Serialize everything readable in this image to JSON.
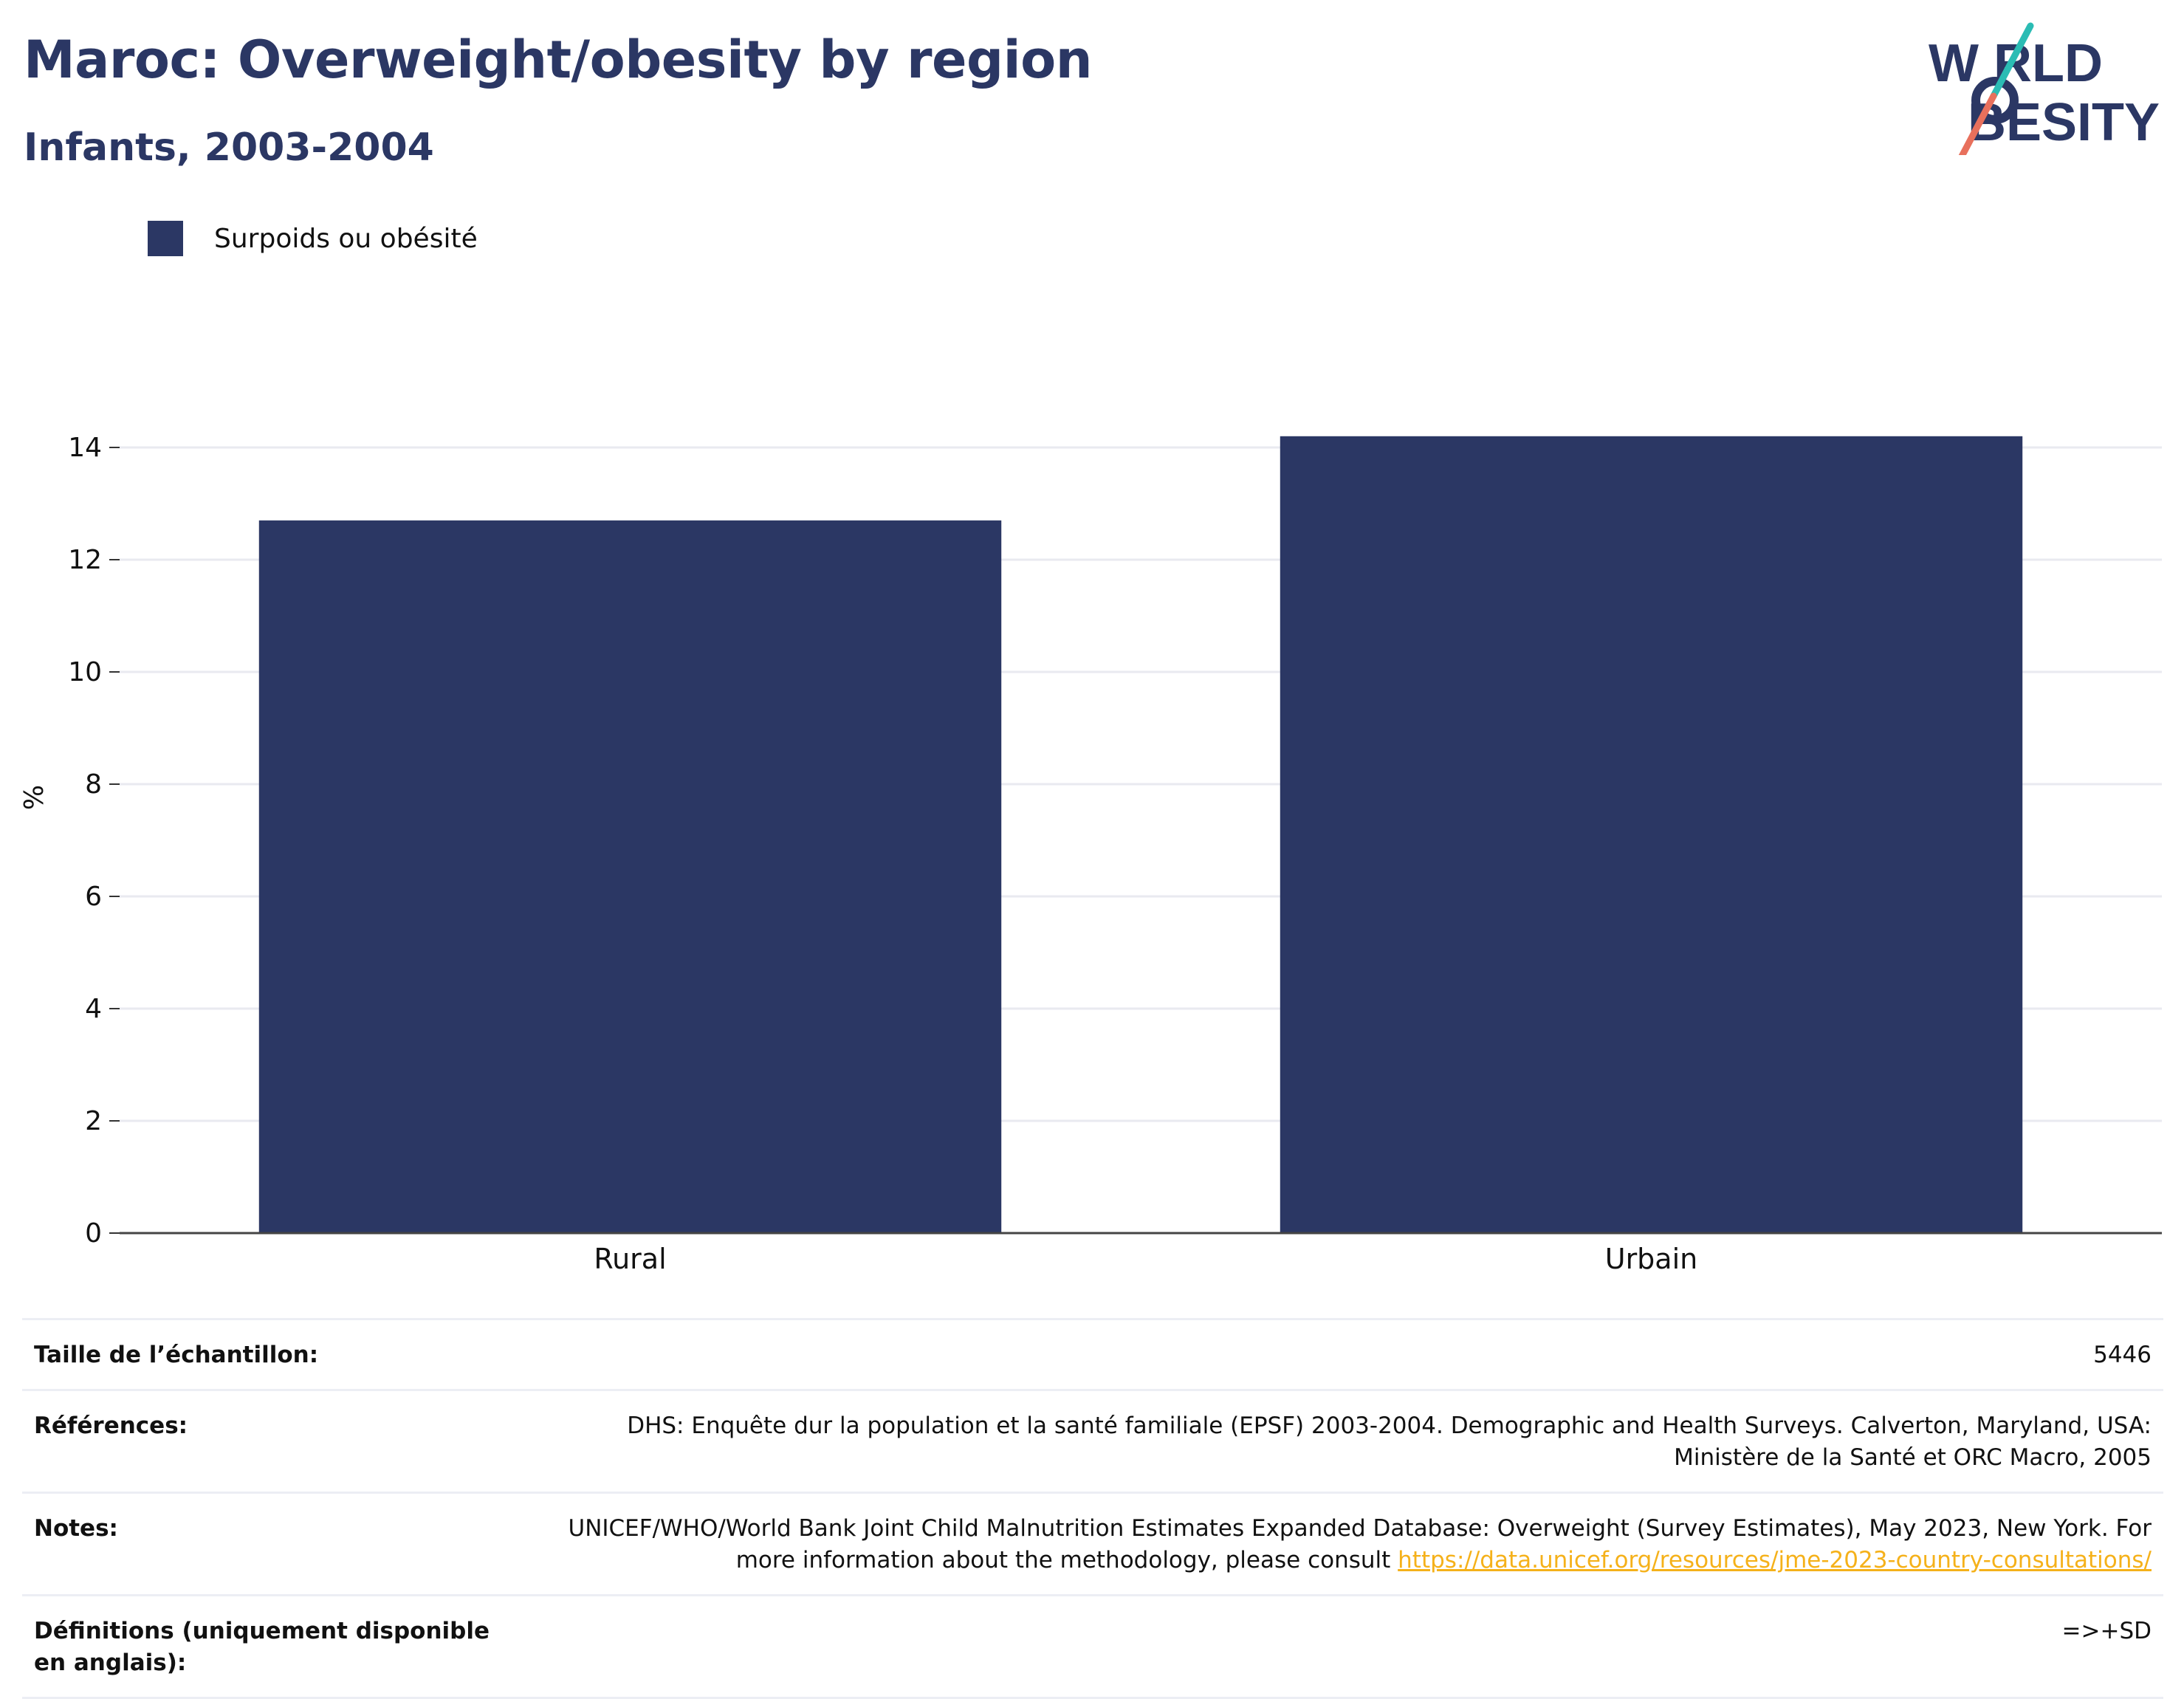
{
  "header": {
    "title": "Maroc: Overweight/obesity by region",
    "subtitle": "Infants, 2003-2004"
  },
  "logo": {
    "line1": "W RLD",
    "line2": "BESITY",
    "colors": {
      "text": "#2b3764",
      "slash_top": "#2bbcb4",
      "slash_bottom": "#e8705c"
    }
  },
  "legend": {
    "label": "Surpoids ou obésité",
    "color": "#2b3764"
  },
  "chart_data": {
    "type": "bar",
    "categories": [
      "Rural",
      "Urbain"
    ],
    "series": [
      {
        "name": "Surpoids ou obésité",
        "values": [
          12.7,
          14.2
        ],
        "color": "#2b3764"
      }
    ],
    "ylabel": "%",
    "xlabel": "",
    "ylim": [
      0,
      15
    ],
    "yticks": [
      0,
      2,
      4,
      6,
      8,
      10,
      12,
      14
    ],
    "grid": true
  },
  "table": {
    "rows": [
      {
        "label": "Taille de l’échantillon:",
        "value": "5446"
      },
      {
        "label": "Références:",
        "value": "DHS: Enquête dur la population et la santé familiale (EPSF) 2003-2004. Demographic and Health Surveys. Calverton, Maryland, USA: Ministère de la Santé et ORC Macro, 2005"
      },
      {
        "label": "Notes:",
        "value": "UNICEF/WHO/World Bank Joint Child Malnutrition Estimates Expanded Database: Overweight (Survey Estimates), May 2023, New York. For more information about the methodology, please consult ",
        "link": "https://data.unicef.org/resources/jme-2023-country-consultations/"
      },
      {
        "label": "Définitions (uniquement disponible en anglais):",
        "value": "=>+SD"
      }
    ]
  }
}
